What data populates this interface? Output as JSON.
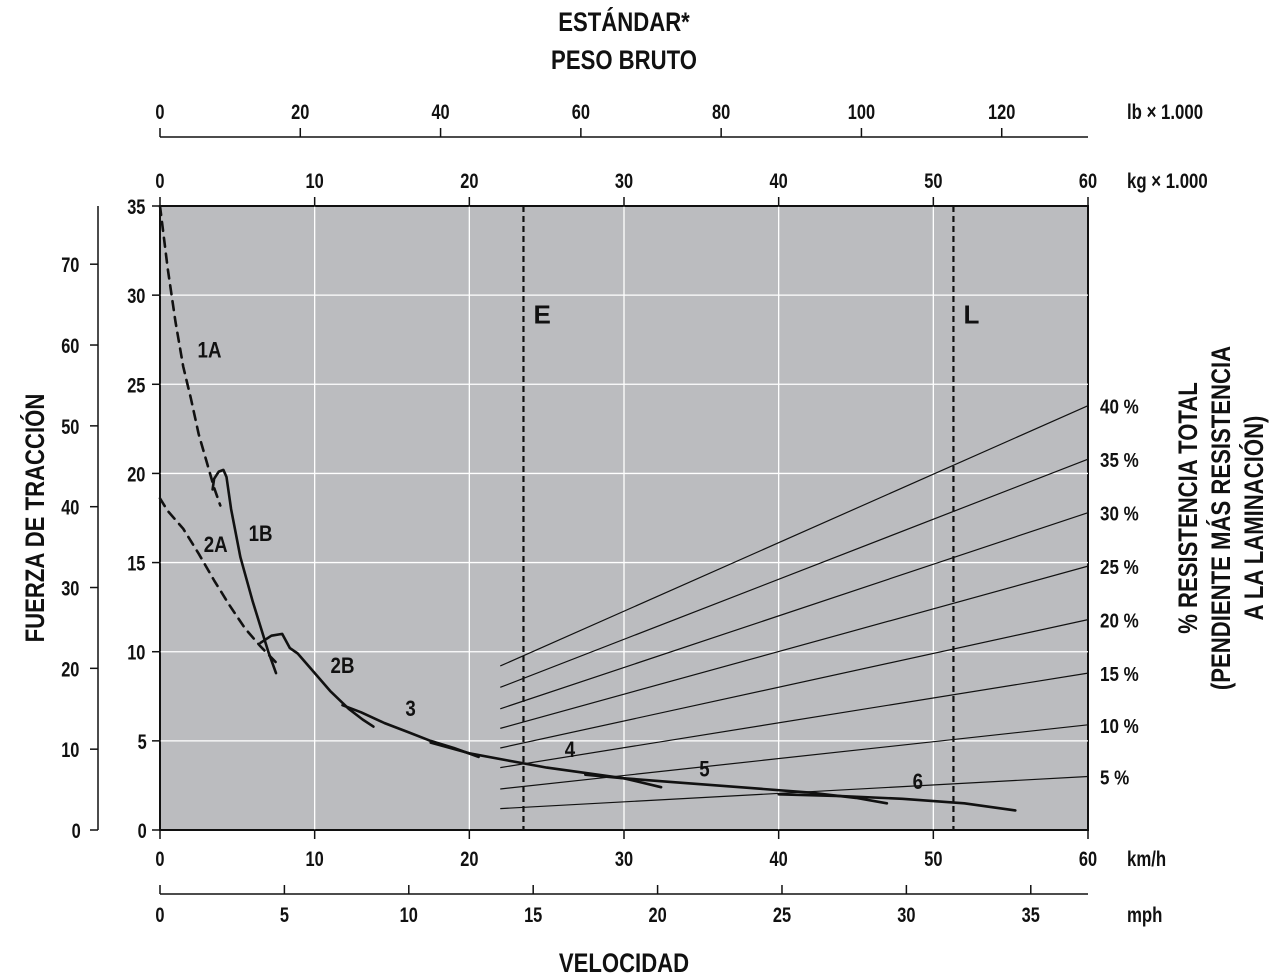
{
  "chart_data": {
    "type": "line",
    "title": "ESTÁNDAR*",
    "subtitle": "PESO BRUTO",
    "xlabel": "VELOCIDAD",
    "ylabel": "FUERZA DE TRACCIÓN",
    "y2label_line1": "% RESISTENCIA TOTAL",
    "y2label_line2": "(PENDIENTE MÁS RESISTENCIA",
    "y2label_line3": "A LA LAMINACIÓN)",
    "grid": true,
    "background_color": "#bbbcbf",
    "axes": {
      "x_kmh": {
        "unit": "km/h",
        "range": [
          0,
          60
        ],
        "ticks": [
          0,
          10,
          20,
          30,
          40,
          50,
          60
        ]
      },
      "x_mph": {
        "unit": "mph",
        "range": [
          0,
          37.3
        ],
        "ticks": [
          0,
          5,
          10,
          15,
          20,
          25,
          30,
          35
        ]
      },
      "top_kg": {
        "unit": "kg × 1.000",
        "range": [
          0,
          60
        ],
        "ticks": [
          0,
          10,
          20,
          30,
          40,
          50,
          60
        ]
      },
      "top_lb": {
        "unit": "lb × 1.000",
        "range": [
          0,
          132.3
        ],
        "ticks": [
          0,
          20,
          40,
          60,
          80,
          100,
          120
        ]
      },
      "y_kg": {
        "unit": "kg × 1.000",
        "range": [
          0,
          35
        ],
        "ticks": [
          0,
          5,
          10,
          15,
          20,
          25,
          30,
          35
        ]
      },
      "y_lb": {
        "unit": "lb × 1.000",
        "range": [
          0,
          77.2
        ],
        "ticks": [
          0,
          10,
          20,
          30,
          40,
          50,
          60,
          70
        ]
      }
    },
    "reference_lines": [
      {
        "label": "E",
        "x_kmh": 23.5
      },
      {
        "label": "L",
        "x_kmh": 51.3
      }
    ],
    "series": [
      {
        "name": "1A",
        "dashed": true,
        "label_at": [
          3.2,
          26.5
        ],
        "x": [
          0,
          0.5,
          1.0,
          1.5,
          2.0,
          2.5,
          3.0,
          3.5,
          3.9
        ],
        "y": [
          35,
          31.5,
          28.5,
          26.0,
          24.2,
          22.2,
          20.7,
          19.2,
          18.2
        ]
      },
      {
        "name": "1B",
        "dashed": false,
        "label_at": [
          6.5,
          16.2
        ],
        "x": [
          3.4,
          3.5,
          3.8,
          4.1,
          4.3,
          4.6,
          5.2,
          6.0,
          7.0,
          7.5
        ],
        "y": [
          19.1,
          19.7,
          20.1,
          20.2,
          19.8,
          18.0,
          15.3,
          12.8,
          10.0,
          8.8
        ]
      },
      {
        "name": "2A",
        "dashed": true,
        "label_at": [
          3.6,
          15.6
        ],
        "x": [
          0,
          0.5,
          1.5,
          2.5,
          3.5,
          4.5,
          5.5,
          6.5,
          7.5
        ],
        "y": [
          18.6,
          17.9,
          16.9,
          15.5,
          14.0,
          12.6,
          11.3,
          10.3,
          9.4
        ]
      },
      {
        "name": "2B",
        "dashed": false,
        "label_at": [
          11.8,
          8.8
        ],
        "x": [
          6.5,
          7.2,
          7.9,
          8.4,
          8.9,
          9.8,
          11.0,
          12.2,
          13.1,
          13.8
        ],
        "y": [
          10.5,
          10.9,
          11.0,
          10.2,
          9.9,
          9.0,
          7.8,
          6.8,
          6.2,
          5.8
        ]
      },
      {
        "name": "3",
        "dashed": false,
        "label_at": [
          16.2,
          6.4
        ],
        "x": [
          11.8,
          13.0,
          14.5,
          16.0,
          17.5,
          19.0,
          20.6
        ],
        "y": [
          7.0,
          6.6,
          6.0,
          5.5,
          5.0,
          4.6,
          4.1
        ]
      },
      {
        "name": "4",
        "dashed": false,
        "label_at": [
          26.5,
          4.1
        ],
        "x": [
          17.5,
          20.0,
          22.5,
          25.0,
          27.5,
          30.0,
          32.4
        ],
        "y": [
          4.9,
          4.3,
          3.9,
          3.5,
          3.2,
          2.9,
          2.4
        ]
      },
      {
        "name": "5",
        "dashed": false,
        "label_at": [
          35.2,
          3.0
        ],
        "x": [
          27.5,
          30.0,
          33.0,
          36.0,
          39.0,
          42.0,
          45.0,
          47.0
        ],
        "y": [
          3.1,
          2.9,
          2.7,
          2.5,
          2.3,
          2.1,
          1.8,
          1.5
        ]
      },
      {
        "name": "6",
        "dashed": false,
        "label_at": [
          49.0,
          2.3
        ],
        "x": [
          40.0,
          44.0,
          48.0,
          52.0,
          55.3
        ],
        "y": [
          2.0,
          1.9,
          1.75,
          1.5,
          1.1
        ]
      }
    ],
    "resistance_lines": [
      {
        "label": "40 %",
        "y_start": 9.2,
        "y_end": 23.8
      },
      {
        "label": "35 %",
        "y_start": 8.0,
        "y_end": 20.8
      },
      {
        "label": "30 %",
        "y_start": 6.8,
        "y_end": 17.8
      },
      {
        "label": "25 %",
        "y_start": 5.7,
        "y_end": 14.8
      },
      {
        "label": "20 %",
        "y_start": 4.6,
        "y_end": 11.8
      },
      {
        "label": "15 %",
        "y_start": 3.5,
        "y_end": 8.8
      },
      {
        "label": "10 %",
        "y_start": 2.3,
        "y_end": 5.9
      },
      {
        "label": "5 %",
        "y_start": 1.2,
        "y_end": 3.0
      }
    ],
    "resistance_x_range": [
      22,
      60
    ]
  }
}
